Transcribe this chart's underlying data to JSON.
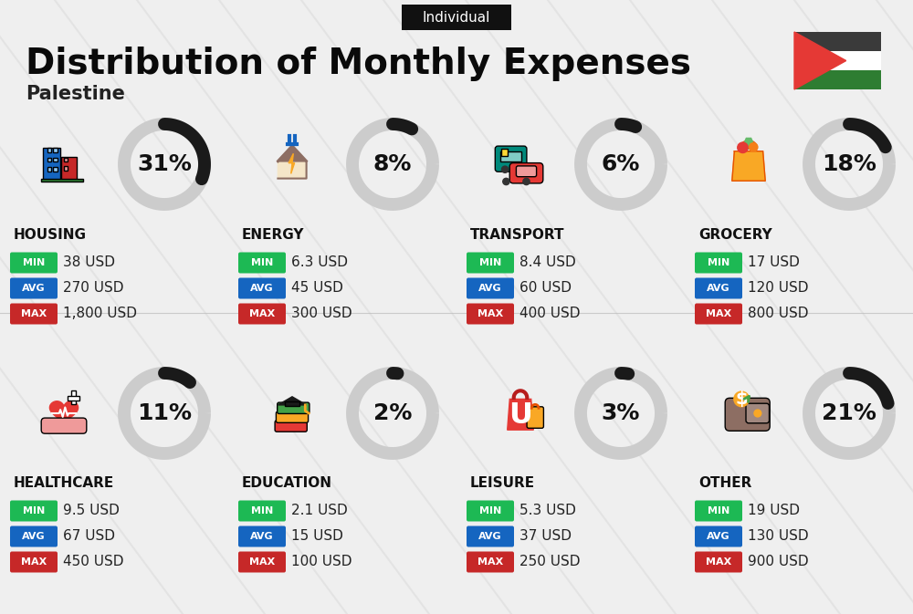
{
  "title": "Distribution of Monthly Expenses",
  "subtitle": "Palestine",
  "tag": "Individual",
  "bg_color": "#efefef",
  "categories": [
    {
      "name": "HOUSING",
      "pct": 31,
      "min": "38 USD",
      "avg": "270 USD",
      "max": "1,800 USD",
      "col": 0,
      "row": 0
    },
    {
      "name": "ENERGY",
      "pct": 8,
      "min": "6.3 USD",
      "avg": "45 USD",
      "max": "300 USD",
      "col": 1,
      "row": 0
    },
    {
      "name": "TRANSPORT",
      "pct": 6,
      "min": "8.4 USD",
      "avg": "60 USD",
      "max": "400 USD",
      "col": 2,
      "row": 0
    },
    {
      "name": "GROCERY",
      "pct": 18,
      "min": "17 USD",
      "avg": "120 USD",
      "max": "800 USD",
      "col": 3,
      "row": 0
    },
    {
      "name": "HEALTHCARE",
      "pct": 11,
      "min": "9.5 USD",
      "avg": "67 USD",
      "max": "450 USD",
      "col": 0,
      "row": 1
    },
    {
      "name": "EDUCATION",
      "pct": 2,
      "min": "2.1 USD",
      "avg": "15 USD",
      "max": "100 USD",
      "col": 1,
      "row": 1
    },
    {
      "name": "LEISURE",
      "pct": 3,
      "min": "5.3 USD",
      "avg": "37 USD",
      "max": "250 USD",
      "col": 2,
      "row": 1
    },
    {
      "name": "OTHER",
      "pct": 21,
      "min": "19 USD",
      "avg": "130 USD",
      "max": "900 USD",
      "col": 3,
      "row": 1
    }
  ],
  "min_color": "#1db954",
  "avg_color": "#1565c0",
  "max_color": "#c62828",
  "circle_dark": "#1a1a1a",
  "circle_light": "#cccccc",
  "title_fontsize": 28,
  "subtitle_fontsize": 15,
  "tag_fontsize": 11,
  "cat_fontsize": 11,
  "pct_fontsize": 18,
  "val_fontsize": 11,
  "badge_fontsize": 8
}
